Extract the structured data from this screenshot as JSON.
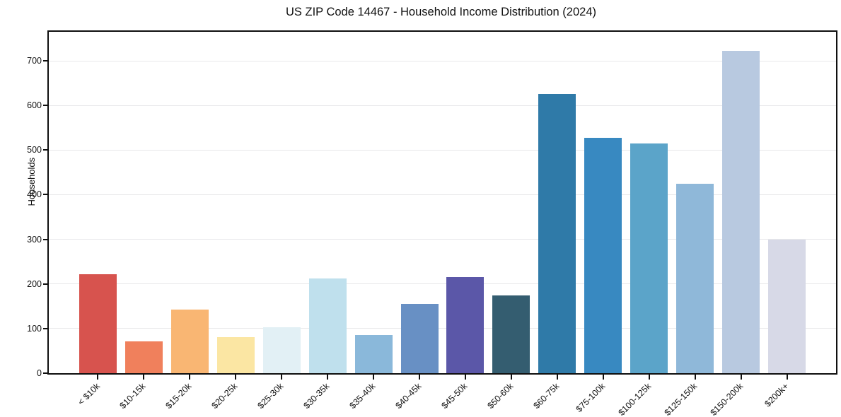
{
  "chart_data": {
    "type": "bar",
    "title": "US ZIP Code 14467 - Household Income Distribution (2024)",
    "xlabel": "",
    "ylabel": "Households",
    "categories": [
      "< $10k",
      "$10-15k",
      "$15-20k",
      "$20-25k",
      "$25-30k",
      "$30-35k",
      "$35-40k",
      "$40-45k",
      "$45-50k",
      "$50-60k",
      "$60-75k",
      "$75-100k",
      "$100-125k",
      "$125-150k",
      "$150-200k",
      "$200k+"
    ],
    "values": [
      222,
      71,
      142,
      81,
      103,
      213,
      85,
      155,
      215,
      175,
      625,
      528,
      515,
      424,
      722,
      299
    ],
    "bar_colors": [
      "#d7534e",
      "#f0805c",
      "#f9b673",
      "#fbe6a3",
      "#e2f0f5",
      "#bfe0ed",
      "#8ab8da",
      "#6890c4",
      "#5b57a8",
      "#345d70",
      "#2f7aa8",
      "#3889c1",
      "#5ba4c9",
      "#8fb8d9",
      "#b8c9e0",
      "#d7d9e7"
    ],
    "yticks": [
      0,
      100,
      200,
      300,
      400,
      500,
      600,
      700
    ],
    "ylim": [
      0,
      765
    ],
    "grid": "horizontal",
    "grid_color": "#e8e8ea",
    "spine_color": "#0f0f0f",
    "background_color": "#ffffff",
    "xtick_rotation": 45,
    "legend": "none"
  }
}
